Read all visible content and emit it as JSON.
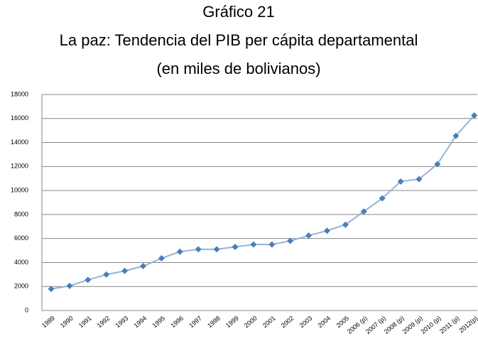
{
  "chart_data": {
    "type": "line",
    "title_lines": [
      "Gráfico 21",
      "La paz: Tendencia del PIB per cápita departamental",
      "(en miles de bolivianos)"
    ],
    "categories": [
      "1989",
      "1990",
      "1991",
      "1992",
      "1993",
      "1994",
      "1995",
      "1996",
      "1997",
      "1998",
      "1999",
      "2000",
      "2001",
      "2002",
      "2003",
      "2004",
      "2005",
      "2006 (p)",
      "2007 (p)",
      "2008 (p)",
      "2009 (p)",
      "2010 (p)",
      "2011 (p)",
      "2012(p)"
    ],
    "values": [
      1800,
      2050,
      2550,
      3000,
      3300,
      3700,
      4350,
      4900,
      5100,
      5100,
      5300,
      5500,
      5500,
      5800,
      6250,
      6650,
      7150,
      8250,
      9350,
      10750,
      10950,
      12200,
      14550,
      16250
    ],
    "color": "#4a7ebb",
    "line_color": "#95b3d7",
    "ylim": [
      0,
      18000
    ],
    "yticks": [
      0,
      2000,
      4000,
      6000,
      8000,
      10000,
      12000,
      14000,
      16000,
      18000
    ],
    "grid": true
  }
}
